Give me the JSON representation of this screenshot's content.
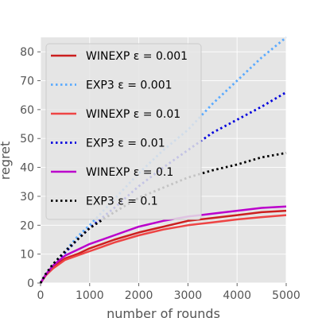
{
  "chart_data": {
    "type": "line",
    "title": "",
    "xlabel": "number of rounds",
    "ylabel": "regret",
    "xlim": [
      0,
      5000
    ],
    "ylim": [
      0,
      85
    ],
    "xticks": [
      0,
      1000,
      2000,
      3000,
      4000,
      5000
    ],
    "yticks": [
      0,
      10,
      20,
      30,
      40,
      50,
      60,
      70,
      80
    ],
    "grid": true,
    "background": "#e5e5e5",
    "legend_position": "top-left",
    "x": [
      0,
      100,
      250,
      500,
      750,
      1000,
      1500,
      2000,
      2500,
      3000,
      3500,
      4000,
      4500,
      5000
    ],
    "series": [
      {
        "name": "WINEXP ε = 0.001",
        "color": "#cc1f1f",
        "style": "solid",
        "values": [
          0,
          2.5,
          5.5,
          8.5,
          10,
          12,
          15,
          17.5,
          19.5,
          21.5,
          22.5,
          23.5,
          24.5,
          25
        ]
      },
      {
        "name": "EXP3 ε = 0.001",
        "color": "#5aaaff",
        "style": "dotted",
        "values": [
          0,
          3,
          6.5,
          11,
          16,
          20,
          29,
          38,
          46,
          53,
          62,
          70,
          78,
          85
        ]
      },
      {
        "name": "WINEXP ε = 0.01",
        "color": "#ee4444",
        "style": "solid",
        "values": [
          0,
          2.5,
          5,
          8,
          9.5,
          11,
          14,
          16.5,
          18.5,
          20,
          21,
          22,
          22.8,
          23.5
        ]
      },
      {
        "name": "EXP3 ε = 0.01",
        "color": "#0000dd",
        "style": "dotted",
        "values": [
          0,
          2.8,
          6,
          10.5,
          15,
          19,
          26,
          33.5,
          40,
          46,
          52,
          56.5,
          61,
          66
        ]
      },
      {
        "name": "WINEXP ε = 0.1",
        "color": "#bb00cc",
        "style": "solid",
        "values": [
          0,
          2.8,
          6,
          9.5,
          11.5,
          13.5,
          16.5,
          19.5,
          21.5,
          23,
          24,
          25,
          26,
          26.5
        ]
      },
      {
        "name": "EXP3 ε = 0.1",
        "color": "#000000",
        "style": "dotted",
        "values": [
          0,
          3,
          6.5,
          11,
          15,
          19,
          24.5,
          29.5,
          33,
          36.5,
          39,
          41,
          43.5,
          45
        ]
      }
    ]
  }
}
